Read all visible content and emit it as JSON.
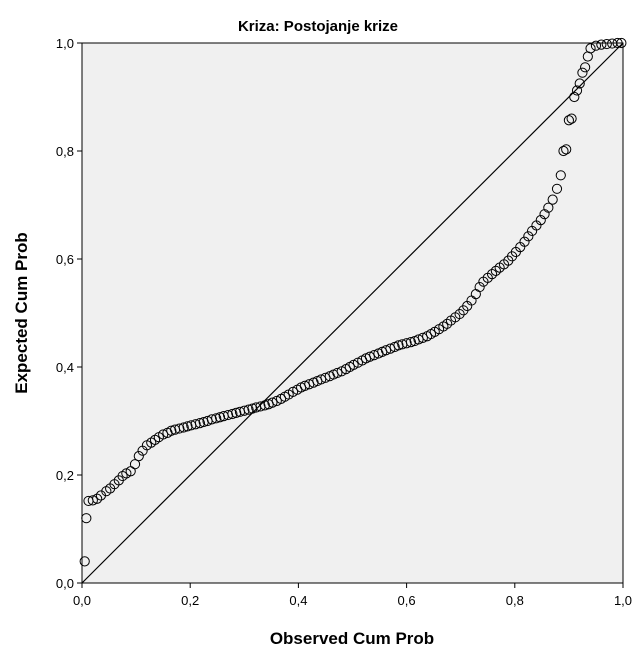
{
  "chart_data": {
    "type": "scatter",
    "title": "Kriza: Postojanje krize",
    "xlabel": "Observed Cum Prob",
    "ylabel": "Expected Cum Prob",
    "xlim": [
      0,
      1
    ],
    "ylim": [
      0,
      1
    ],
    "x_ticks": [
      "0,0",
      "0,2",
      "0,4",
      "0,6",
      "0,8",
      "1,0"
    ],
    "y_ticks": [
      "0,0",
      "0,2",
      "0,4",
      "0,6",
      "0,8",
      "1,0"
    ],
    "grid": false,
    "plot_background": "#f0f0f0",
    "marker_color": "#000000",
    "reference_line": {
      "from": [
        0,
        0
      ],
      "to": [
        1,
        1
      ]
    },
    "points": [
      [
        0.005,
        0.04
      ],
      [
        0.008,
        0.12
      ],
      [
        0.012,
        0.152
      ],
      [
        0.02,
        0.153
      ],
      [
        0.028,
        0.156
      ],
      [
        0.035,
        0.162
      ],
      [
        0.045,
        0.17
      ],
      [
        0.052,
        0.175
      ],
      [
        0.06,
        0.183
      ],
      [
        0.068,
        0.19
      ],
      [
        0.075,
        0.198
      ],
      [
        0.082,
        0.203
      ],
      [
        0.09,
        0.207
      ],
      [
        0.098,
        0.22
      ],
      [
        0.105,
        0.235
      ],
      [
        0.112,
        0.245
      ],
      [
        0.12,
        0.255
      ],
      [
        0.128,
        0.26
      ],
      [
        0.135,
        0.265
      ],
      [
        0.142,
        0.27
      ],
      [
        0.15,
        0.275
      ],
      [
        0.158,
        0.278
      ],
      [
        0.165,
        0.282
      ],
      [
        0.172,
        0.284
      ],
      [
        0.18,
        0.286
      ],
      [
        0.188,
        0.288
      ],
      [
        0.195,
        0.29
      ],
      [
        0.202,
        0.292
      ],
      [
        0.21,
        0.294
      ],
      [
        0.218,
        0.296
      ],
      [
        0.225,
        0.298
      ],
      [
        0.232,
        0.3
      ],
      [
        0.24,
        0.303
      ],
      [
        0.248,
        0.305
      ],
      [
        0.255,
        0.307
      ],
      [
        0.262,
        0.309
      ],
      [
        0.27,
        0.311
      ],
      [
        0.278,
        0.313
      ],
      [
        0.285,
        0.315
      ],
      [
        0.292,
        0.317
      ],
      [
        0.3,
        0.319
      ],
      [
        0.308,
        0.321
      ],
      [
        0.315,
        0.323
      ],
      [
        0.322,
        0.325
      ],
      [
        0.33,
        0.327
      ],
      [
        0.338,
        0.329
      ],
      [
        0.345,
        0.331
      ],
      [
        0.352,
        0.334
      ],
      [
        0.36,
        0.337
      ],
      [
        0.368,
        0.341
      ],
      [
        0.375,
        0.345
      ],
      [
        0.382,
        0.349
      ],
      [
        0.39,
        0.354
      ],
      [
        0.398,
        0.358
      ],
      [
        0.405,
        0.362
      ],
      [
        0.412,
        0.365
      ],
      [
        0.42,
        0.368
      ],
      [
        0.428,
        0.371
      ],
      [
        0.435,
        0.374
      ],
      [
        0.442,
        0.377
      ],
      [
        0.45,
        0.38
      ],
      [
        0.458,
        0.383
      ],
      [
        0.465,
        0.386
      ],
      [
        0.472,
        0.389
      ],
      [
        0.48,
        0.392
      ],
      [
        0.488,
        0.396
      ],
      [
        0.495,
        0.4
      ],
      [
        0.502,
        0.404
      ],
      [
        0.51,
        0.408
      ],
      [
        0.518,
        0.412
      ],
      [
        0.525,
        0.416
      ],
      [
        0.532,
        0.419
      ],
      [
        0.54,
        0.422
      ],
      [
        0.548,
        0.425
      ],
      [
        0.555,
        0.428
      ],
      [
        0.562,
        0.431
      ],
      [
        0.57,
        0.434
      ],
      [
        0.578,
        0.437
      ],
      [
        0.585,
        0.44
      ],
      [
        0.592,
        0.442
      ],
      [
        0.6,
        0.444
      ],
      [
        0.608,
        0.446
      ],
      [
        0.615,
        0.448
      ],
      [
        0.622,
        0.451
      ],
      [
        0.63,
        0.454
      ],
      [
        0.638,
        0.457
      ],
      [
        0.645,
        0.461
      ],
      [
        0.652,
        0.465
      ],
      [
        0.66,
        0.47
      ],
      [
        0.668,
        0.475
      ],
      [
        0.675,
        0.48
      ],
      [
        0.682,
        0.486
      ],
      [
        0.69,
        0.492
      ],
      [
        0.698,
        0.498
      ],
      [
        0.705,
        0.505
      ],
      [
        0.712,
        0.513
      ],
      [
        0.72,
        0.523
      ],
      [
        0.728,
        0.535
      ],
      [
        0.735,
        0.548
      ],
      [
        0.742,
        0.558
      ],
      [
        0.75,
        0.565
      ],
      [
        0.758,
        0.572
      ],
      [
        0.765,
        0.578
      ],
      [
        0.772,
        0.584
      ],
      [
        0.78,
        0.59
      ],
      [
        0.788,
        0.597
      ],
      [
        0.795,
        0.605
      ],
      [
        0.802,
        0.613
      ],
      [
        0.81,
        0.622
      ],
      [
        0.818,
        0.632
      ],
      [
        0.825,
        0.642
      ],
      [
        0.832,
        0.652
      ],
      [
        0.84,
        0.662
      ],
      [
        0.848,
        0.672
      ],
      [
        0.855,
        0.683
      ],
      [
        0.862,
        0.695
      ],
      [
        0.87,
        0.71
      ],
      [
        0.878,
        0.73
      ],
      [
        0.885,
        0.755
      ],
      [
        0.89,
        0.8
      ],
      [
        0.895,
        0.803
      ],
      [
        0.9,
        0.857
      ],
      [
        0.905,
        0.86
      ],
      [
        0.91,
        0.9
      ],
      [
        0.915,
        0.912
      ],
      [
        0.92,
        0.925
      ],
      [
        0.925,
        0.945
      ],
      [
        0.93,
        0.955
      ],
      [
        0.935,
        0.975
      ],
      [
        0.94,
        0.99
      ],
      [
        0.95,
        0.995
      ],
      [
        0.96,
        0.997
      ],
      [
        0.97,
        0.998
      ],
      [
        0.98,
        0.999
      ],
      [
        0.99,
        1.0
      ],
      [
        0.997,
        1.0
      ]
    ]
  }
}
